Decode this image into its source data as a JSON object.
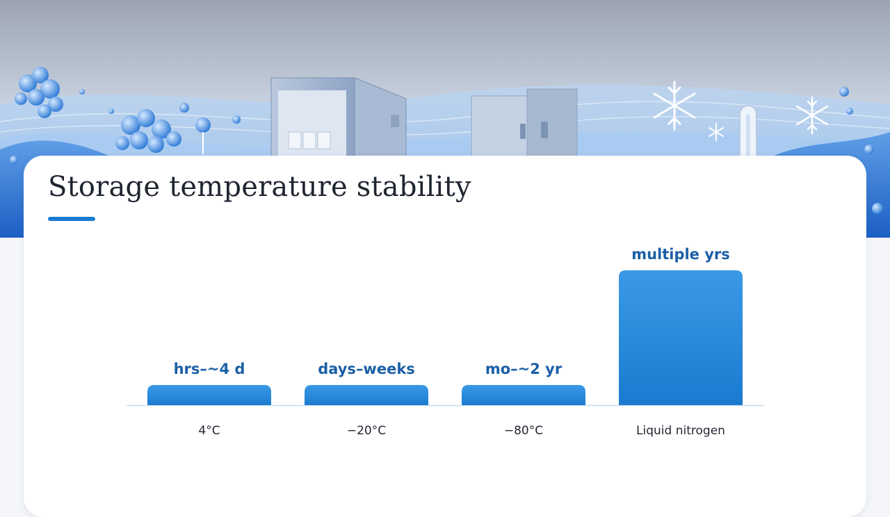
{
  "page": {
    "title": "Storage temperature stability",
    "accent": "#1a7ad0"
  },
  "banner": {
    "icons": [
      "protein-molecule-icon",
      "lab-refrigerator-icon",
      "ultra-freezer-icon",
      "snowflake-icon",
      "thermometer-icon"
    ]
  },
  "chart_data": {
    "type": "bar",
    "title": "",
    "xlabel": "",
    "ylabel": "",
    "grid": false,
    "categories": [
      "4°C",
      "−20°C",
      "−80°C",
      "Liquid nitrogen"
    ],
    "values": [
      1,
      1,
      1,
      7
    ],
    "data_labels": [
      "hrs–~4 d",
      "days–weeks",
      "mo–~2 yr",
      "multiple yrs"
    ],
    "ylim": [
      0,
      7
    ],
    "bar_color": "#1a7ad0",
    "bar_color_light": "#3b9ae6"
  }
}
